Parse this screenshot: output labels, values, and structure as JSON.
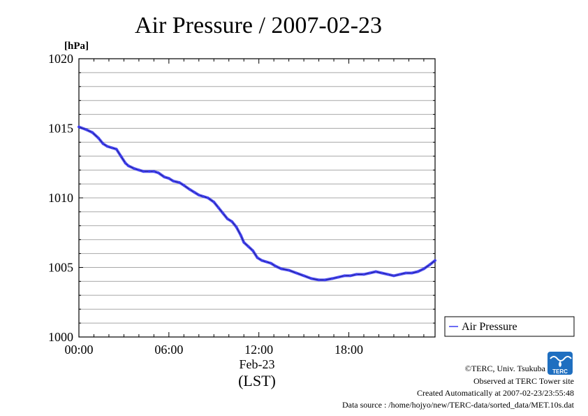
{
  "chart_data": {
    "type": "line",
    "title": "Air Pressure / 2007-02-23",
    "ylabel": "[hPa]",
    "xlabel": "(LST)",
    "x_date_label": "Feb-23",
    "ylim": [
      1000,
      1020
    ],
    "xlim_hours": [
      0,
      23.75
    ],
    "y_ticks": [
      "1000",
      "1005",
      "1010",
      "1015",
      "1020"
    ],
    "x_ticks": [
      "00:00",
      "06:00",
      "12:00",
      "18:00"
    ],
    "x_tick_hours": [
      0,
      6,
      12,
      18
    ],
    "grid": true,
    "legend_position": "right",
    "series": [
      {
        "name": "Air Pressure",
        "color": "#3a3af0",
        "x": [
          0,
          0.5,
          0.9,
          1.3,
          1.6,
          1.9,
          2.2,
          2.5,
          2.8,
          3.1,
          3.3,
          3.7,
          4.0,
          4.3,
          4.7,
          5.0,
          5.3,
          5.7,
          6.0,
          6.3,
          6.7,
          7.0,
          7.4,
          7.7,
          8.0,
          8.3,
          8.6,
          9.0,
          9.3,
          9.6,
          9.9,
          10.2,
          10.5,
          10.8,
          11.0,
          11.3,
          11.6,
          11.9,
          12.2,
          12.5,
          12.8,
          13.1,
          13.5,
          14.0,
          14.5,
          15.0,
          15.5,
          16.0,
          16.4,
          16.9,
          17.3,
          17.7,
          18.1,
          18.5,
          19.0,
          19.4,
          19.8,
          20.2,
          20.6,
          21.0,
          21.4,
          21.8,
          22.2,
          22.6,
          23.0,
          23.4,
          23.75
        ],
        "y": [
          1015.1,
          1014.9,
          1014.7,
          1014.3,
          1013.9,
          1013.7,
          1013.6,
          1013.5,
          1013.0,
          1012.5,
          1012.3,
          1012.1,
          1012.0,
          1011.9,
          1011.9,
          1011.9,
          1011.8,
          1011.5,
          1011.4,
          1011.2,
          1011.1,
          1010.9,
          1010.6,
          1010.4,
          1010.2,
          1010.1,
          1010.0,
          1009.7,
          1009.3,
          1008.9,
          1008.5,
          1008.3,
          1007.9,
          1007.3,
          1006.8,
          1006.5,
          1006.2,
          1005.7,
          1005.5,
          1005.4,
          1005.3,
          1005.1,
          1004.9,
          1004.8,
          1004.6,
          1004.4,
          1004.2,
          1004.1,
          1004.1,
          1004.2,
          1004.3,
          1004.4,
          1004.4,
          1004.5,
          1004.5,
          1004.6,
          1004.7,
          1004.6,
          1004.5,
          1004.4,
          1004.5,
          1004.6,
          1004.6,
          1004.7,
          1004.9,
          1005.2,
          1005.5
        ]
      }
    ]
  },
  "credits": {
    "copyright": "©TERC, Univ. Tsukuba",
    "observed": "Observed at TERC Tower site",
    "created": "Created Automatically at 2007-02-23/23:55:48",
    "source": "Data source : /home/hojyo/new/TERC-data/sorted_data/MET.10s.dat"
  },
  "logo": {
    "text": "TERC",
    "color": "#1f6fc0"
  }
}
